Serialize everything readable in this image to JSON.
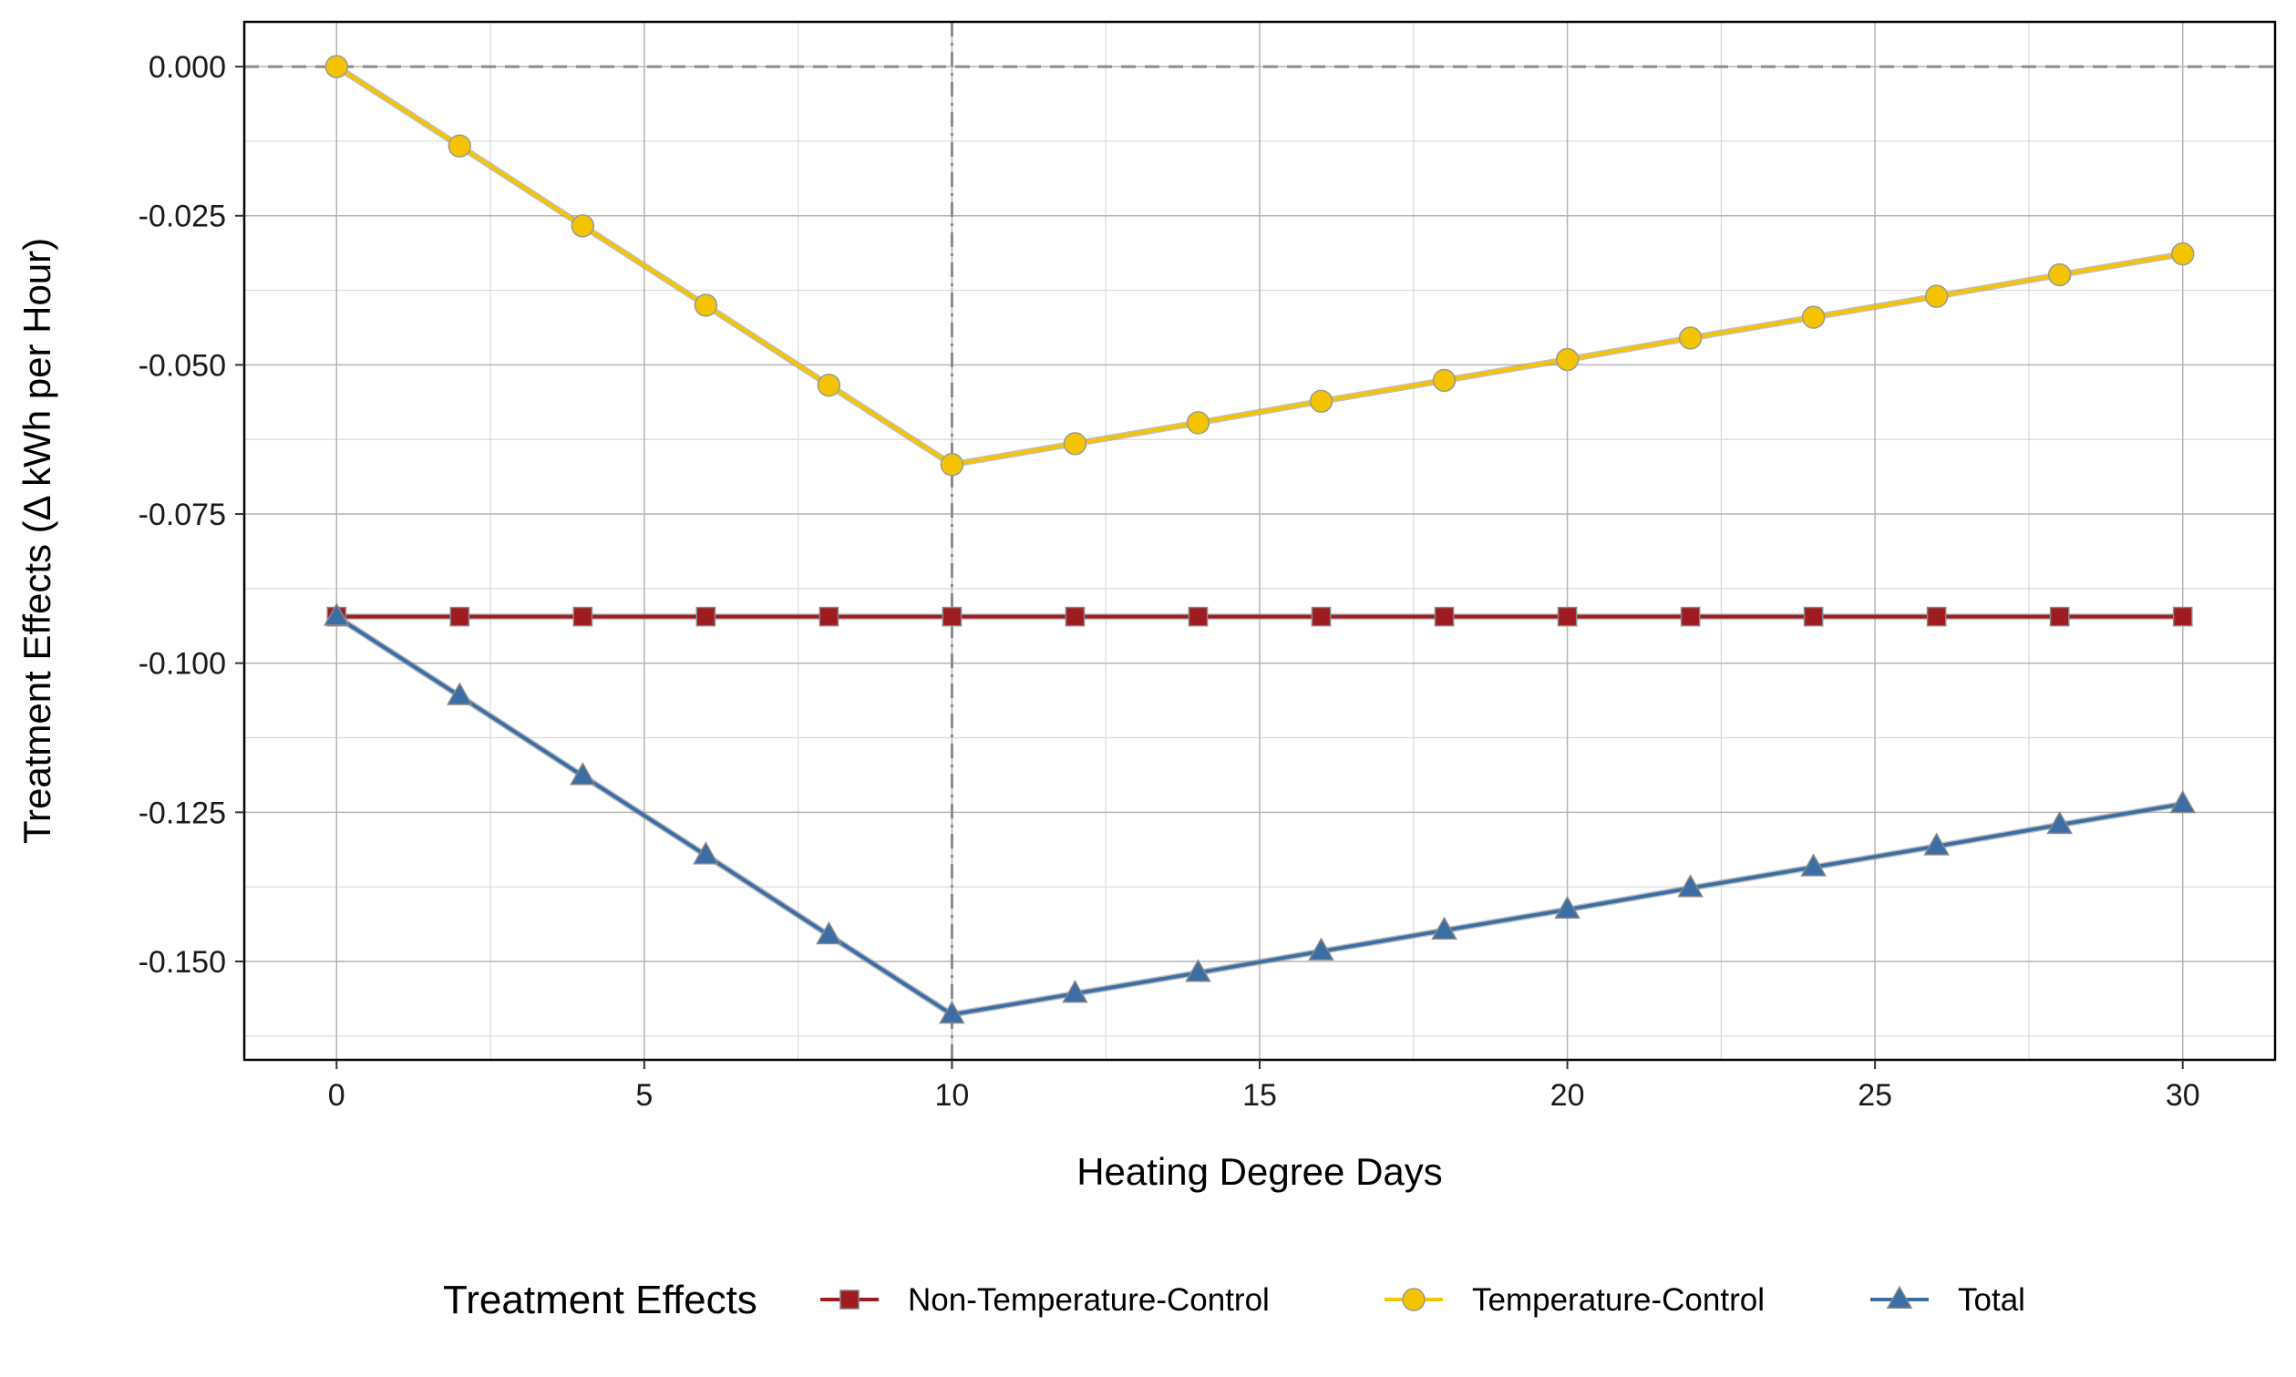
{
  "chart_data": {
    "type": "line",
    "xlabel": "Heating Degree Days",
    "ylabel": "Treatment Effects (Δ kWh per Hour)",
    "xlim": [
      -1.5,
      31.5
    ],
    "ylim": [
      -0.1665,
      0.0075
    ],
    "x_ticks": [
      0,
      5,
      10,
      15,
      20,
      25,
      30
    ],
    "x_tick_labels": [
      "0",
      "5",
      "10",
      "15",
      "20",
      "25",
      "30"
    ],
    "y_ticks": [
      0.0,
      -0.025,
      -0.05,
      -0.075,
      -0.1,
      -0.125,
      -0.15
    ],
    "y_tick_labels": [
      "0.000",
      "-0.025",
      "-0.050",
      "-0.075",
      "-0.100",
      "-0.125",
      "-0.150"
    ],
    "grid": true,
    "reference_lines": {
      "horizontal_y": 0.0,
      "vertical_x": 10
    },
    "x": [
      0,
      2,
      4,
      6,
      8,
      10,
      12,
      14,
      16,
      18,
      20,
      22,
      24,
      26,
      28,
      30
    ],
    "series": [
      {
        "name": "Non-Temperature-Control",
        "marker": "square",
        "color": "#9e1b20",
        "values": [
          -0.0922,
          -0.0922,
          -0.0922,
          -0.0922,
          -0.0922,
          -0.0922,
          -0.0922,
          -0.0922,
          -0.0922,
          -0.0922,
          -0.0922,
          -0.0922,
          -0.0922,
          -0.0922,
          -0.0922,
          -0.0922
        ]
      },
      {
        "name": "Temperature-Control",
        "marker": "circle",
        "color": "#f5c400",
        "values": [
          0.0,
          -0.0133,
          -0.0267,
          -0.04,
          -0.0534,
          -0.0667,
          -0.0632,
          -0.0597,
          -0.0561,
          -0.0526,
          -0.0491,
          -0.0455,
          -0.042,
          -0.0385,
          -0.0349,
          -0.0314
        ]
      },
      {
        "name": "Total",
        "marker": "triangle",
        "color": "#3a6ea5",
        "values": [
          -0.0922,
          -0.1055,
          -0.1189,
          -0.1322,
          -0.1456,
          -0.1589,
          -0.1554,
          -0.1519,
          -0.1483,
          -0.1448,
          -0.1413,
          -0.1377,
          -0.1342,
          -0.1307,
          -0.1271,
          -0.1236
        ]
      }
    ],
    "legend": {
      "title": "Treatment Effects",
      "position": "bottom"
    }
  }
}
